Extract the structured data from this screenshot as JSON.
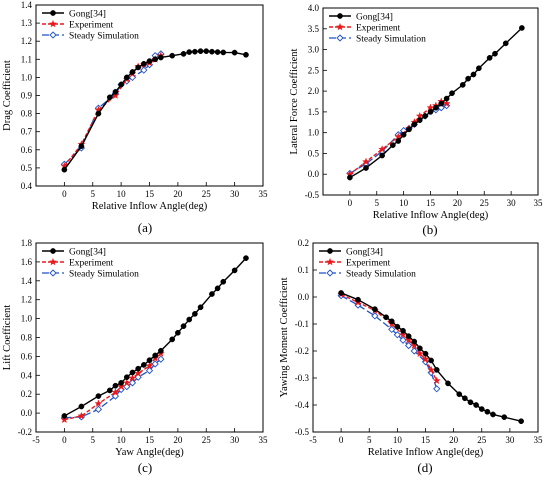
{
  "colors": {
    "gong": "#000000",
    "experiment": "#e8191c",
    "simulation": "#1f52c8"
  },
  "chart_data": [
    {
      "type": "line",
      "panel_label": "(a)",
      "xlabel": "Relative Inflow Angle(deg)",
      "ylabel": "Drag Coefficient",
      "xlim": [
        -5,
        35
      ],
      "ylim": [
        0.4,
        1.4
      ],
      "xticks": [
        0,
        5,
        10,
        15,
        20,
        25,
        30,
        35
      ],
      "yticks": [
        0.4,
        0.5,
        0.6,
        0.7,
        0.8,
        0.9,
        1.0,
        1.1,
        1.2,
        1.3,
        1.4
      ],
      "ytick_labels": [
        "0.4",
        "0.5",
        "0.6",
        "0.7",
        "0.8",
        "0.9",
        "1.0",
        "1.1",
        "1.2",
        "1.3",
        "1.4"
      ],
      "legend_position": "top-left",
      "series": [
        {
          "name": "Gong[34]",
          "style": "gong",
          "x": [
            0,
            3,
            6,
            8,
            9,
            10,
            11,
            12,
            13,
            14,
            15,
            16,
            17,
            19,
            21,
            22,
            23,
            24,
            25,
            26,
            27,
            28,
            30,
            32
          ],
          "y": [
            0.49,
            0.62,
            0.8,
            0.89,
            0.92,
            0.96,
            1.0,
            1.03,
            1.055,
            1.075,
            1.09,
            1.1,
            1.11,
            1.12,
            1.13,
            1.14,
            1.142,
            1.145,
            1.145,
            1.142,
            1.14,
            1.138,
            1.137,
            1.125
          ]
        },
        {
          "name": "Experiment",
          "style": "experiment",
          "x": [
            0,
            3,
            6,
            9,
            11,
            12,
            13,
            14,
            15,
            16,
            17
          ],
          "y": [
            0.51,
            0.63,
            0.82,
            0.9,
            0.99,
            1.02,
            1.06,
            1.07,
            1.08,
            1.1,
            1.12
          ]
        },
        {
          "name": "Steady Simulation",
          "style": "simulation",
          "x": [
            0,
            3,
            6,
            9,
            10,
            11,
            12,
            14,
            15,
            16,
            17
          ],
          "y": [
            0.52,
            0.61,
            0.83,
            0.91,
            0.96,
            0.98,
            1.0,
            1.04,
            1.07,
            1.12,
            1.13
          ]
        }
      ]
    },
    {
      "type": "line",
      "panel_label": "(b)",
      "xlabel": "Relative Inflow Angle(deg)",
      "ylabel": "Lateral Force Coefficient",
      "xlim": [
        -5,
        35
      ],
      "ylim": [
        -0.5,
        4.0
      ],
      "xticks": [
        0,
        5,
        10,
        15,
        20,
        25,
        30,
        35
      ],
      "yticks": [
        -0.5,
        0,
        0.5,
        1.0,
        1.5,
        2.0,
        2.5,
        3.0,
        3.5,
        4.0
      ],
      "ytick_labels": [
        "-0.5",
        "0.0",
        "0.5",
        "1.0",
        "1.5",
        "2.0",
        "2.5",
        "3.0",
        "3.5",
        "4.0"
      ],
      "legend_position": "top-left",
      "series": [
        {
          "name": "Gong[34]",
          "style": "gong",
          "x": [
            0,
            3,
            6,
            8,
            9,
            10,
            11,
            12,
            13,
            14,
            15,
            16,
            17,
            18,
            19,
            21,
            22,
            23,
            24,
            26,
            27,
            29,
            32
          ],
          "y": [
            -0.08,
            0.15,
            0.45,
            0.7,
            0.8,
            0.95,
            1.08,
            1.2,
            1.3,
            1.4,
            1.5,
            1.6,
            1.7,
            1.82,
            1.95,
            2.15,
            2.3,
            2.4,
            2.55,
            2.8,
            2.9,
            3.15,
            3.52
          ]
        },
        {
          "name": "Experiment",
          "style": "experiment",
          "x": [
            0,
            3,
            6,
            9,
            11,
            12,
            13,
            15,
            16,
            17,
            18
          ],
          "y": [
            0.0,
            0.3,
            0.6,
            0.9,
            1.1,
            1.25,
            1.4,
            1.6,
            1.65,
            1.75,
            1.7
          ]
        },
        {
          "name": "Steady Simulation",
          "style": "simulation",
          "x": [
            0,
            3,
            6,
            9,
            10,
            11,
            12,
            14,
            16,
            17,
            18
          ],
          "y": [
            0.02,
            0.25,
            0.55,
            0.95,
            1.05,
            1.1,
            1.2,
            1.4,
            1.55,
            1.6,
            1.65
          ]
        }
      ]
    },
    {
      "type": "line",
      "panel_label": "(c)",
      "xlabel": "Yaw Angle(deg)",
      "ylabel": "Lift Coefficient",
      "xlim": [
        -5,
        35
      ],
      "ylim": [
        -0.2,
        1.8
      ],
      "xticks": [
        -5,
        0,
        5,
        10,
        15,
        20,
        25,
        30,
        35
      ],
      "yticks": [
        -0.2,
        0,
        0.2,
        0.4,
        0.6,
        0.8,
        1.0,
        1.2,
        1.4,
        1.6,
        1.8
      ],
      "ytick_labels": [
        "-0.2",
        "0.0",
        "0.2",
        "0.4",
        "0.6",
        "0.8",
        "1.0",
        "1.2",
        "1.4",
        "1.6",
        "1.8"
      ],
      "legend_position": "top-left",
      "series": [
        {
          "name": "Gong[34]",
          "style": "gong",
          "x": [
            0,
            3,
            6,
            8,
            9,
            10,
            11,
            12,
            13,
            14,
            15,
            16,
            17,
            19,
            20,
            21,
            22,
            23,
            24,
            26,
            27,
            28,
            30,
            32
          ],
          "y": [
            -0.03,
            0.07,
            0.18,
            0.24,
            0.29,
            0.32,
            0.38,
            0.43,
            0.47,
            0.51,
            0.56,
            0.61,
            0.66,
            0.78,
            0.85,
            0.92,
            0.99,
            1.05,
            1.12,
            1.26,
            1.32,
            1.39,
            1.51,
            1.64
          ]
        },
        {
          "name": "Experiment",
          "style": "experiment",
          "x": [
            0,
            3,
            6,
            9,
            10,
            11,
            12,
            13,
            15,
            16,
            17
          ],
          "y": [
            -0.07,
            -0.03,
            0.1,
            0.22,
            0.28,
            0.32,
            0.37,
            0.42,
            0.5,
            0.58,
            0.63
          ]
        },
        {
          "name": "Steady Simulation",
          "style": "simulation",
          "x": [
            0,
            3,
            6,
            9,
            10,
            11,
            12,
            13,
            15,
            16,
            17
          ],
          "y": [
            -0.05,
            -0.04,
            0.04,
            0.18,
            0.25,
            0.28,
            0.32,
            0.38,
            0.45,
            0.52,
            0.57
          ]
        }
      ]
    },
    {
      "type": "line",
      "panel_label": "(d)",
      "xlabel": "Relative Inflow Angle(deg)",
      "ylabel": "Yawing Moment Coefficient",
      "xlim": [
        -5,
        35
      ],
      "ylim": [
        -0.5,
        0.2
      ],
      "xticks": [
        -5,
        0,
        5,
        10,
        15,
        20,
        25,
        30,
        35
      ],
      "yticks": [
        -0.5,
        -0.4,
        -0.3,
        -0.2,
        -0.1,
        0.0,
        0.1,
        0.2
      ],
      "ytick_labels": [
        "-0.5",
        "-0.4",
        "-0.3",
        "-0.2",
        "-0.1",
        "0.0",
        "0.1",
        "0.2"
      ],
      "legend_position": "top-left",
      "series": [
        {
          "name": "Gong[34]",
          "style": "gong",
          "x": [
            0,
            3,
            6,
            8,
            9,
            10,
            11,
            12,
            13,
            14,
            15,
            16,
            17,
            19,
            21,
            22,
            23,
            24,
            25,
            26,
            27,
            29,
            32
          ],
          "y": [
            0.015,
            -0.01,
            -0.045,
            -0.075,
            -0.09,
            -0.11,
            -0.125,
            -0.145,
            -0.165,
            -0.19,
            -0.21,
            -0.235,
            -0.27,
            -0.32,
            -0.36,
            -0.375,
            -0.39,
            -0.4,
            -0.415,
            -0.425,
            -0.435,
            -0.445,
            -0.46
          ]
        },
        {
          "name": "Experiment",
          "style": "experiment",
          "x": [
            0,
            3,
            6,
            9,
            11,
            12,
            13,
            14,
            15,
            16,
            17
          ],
          "y": [
            0.01,
            -0.02,
            -0.05,
            -0.1,
            -0.14,
            -0.16,
            -0.18,
            -0.21,
            -0.23,
            -0.27,
            -0.31
          ]
        },
        {
          "name": "Steady Simulation",
          "style": "simulation",
          "x": [
            0,
            3,
            6,
            9,
            10,
            11,
            12,
            13,
            15,
            16,
            17
          ],
          "y": [
            0.005,
            -0.03,
            -0.07,
            -0.12,
            -0.14,
            -0.16,
            -0.18,
            -0.2,
            -0.24,
            -0.28,
            -0.34
          ]
        }
      ]
    }
  ]
}
